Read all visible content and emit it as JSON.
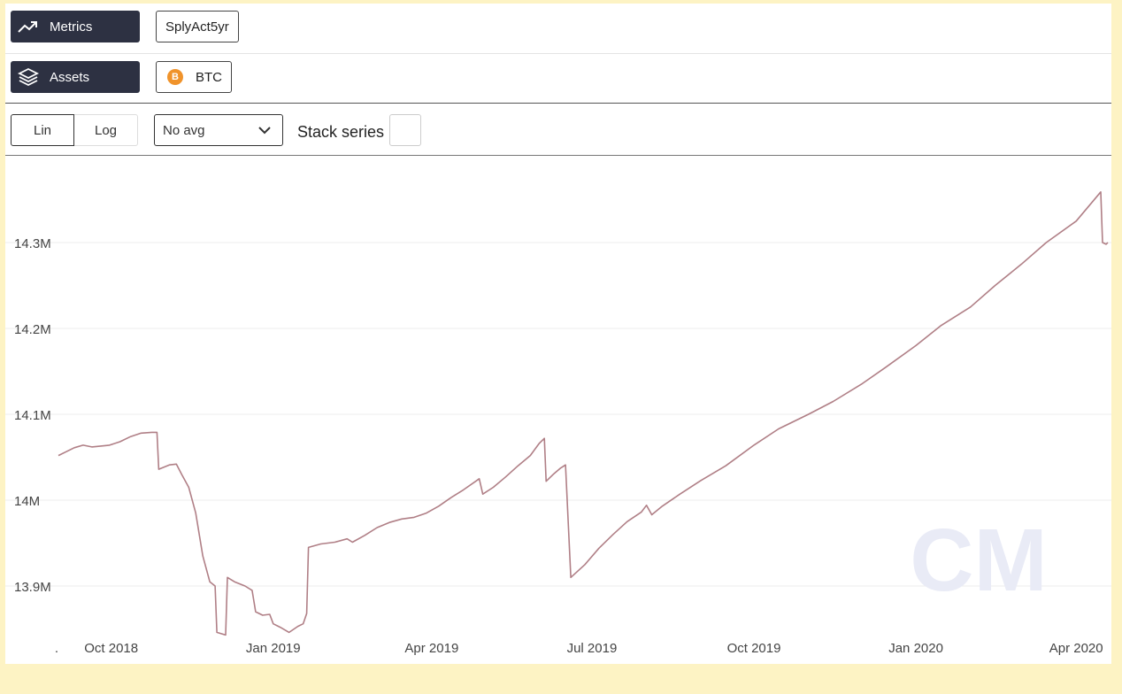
{
  "toolbar": {
    "metrics_label": "Metrics",
    "metric_value": "SplyAct5yr",
    "assets_label": "Assets",
    "asset_value": "BTC",
    "scale_lin": "Lin",
    "scale_log": "Log",
    "avg_select": "No avg",
    "stack_label": "Stack series"
  },
  "icons": [
    "trend-icon",
    "layers-icon",
    "bitcoin-icon",
    "chevron-down-icon"
  ],
  "colors": {
    "line": "#b07f86",
    "button_dark": "#2d3142",
    "bitcoin": "#f0932b"
  },
  "watermark": "CM",
  "chart_data": {
    "type": "line",
    "title": "",
    "xlabel": "",
    "ylabel": "",
    "ylim": [
      13.84,
      14.36
    ],
    "yticks": [
      {
        "value": 13.9,
        "label": "13.9M"
      },
      {
        "value": 14.0,
        "label": "14M"
      },
      {
        "value": 14.1,
        "label": "14.1M"
      },
      {
        "value": 14.2,
        "label": "14.2M"
      },
      {
        "value": 14.3,
        "label": "14.3M"
      }
    ],
    "xticks": [
      {
        "value": "2018-08-31",
        "label": "."
      },
      {
        "value": "2018-10-01",
        "label": "Oct 2018"
      },
      {
        "value": "2019-01-01",
        "label": "Jan 2019"
      },
      {
        "value": "2019-04-01",
        "label": "Apr 2019"
      },
      {
        "value": "2019-07-01",
        "label": "Jul 2019"
      },
      {
        "value": "2019-10-01",
        "label": "Oct 2019"
      },
      {
        "value": "2020-01-01",
        "label": "Jan 2020"
      },
      {
        "value": "2020-04-01",
        "label": "Apr 2020"
      }
    ],
    "xlim": [
      "2018-09-01",
      "2020-04-19"
    ],
    "grid": true,
    "series": [
      {
        "points": [
          [
            "2018-09-01",
            14.052
          ],
          [
            "2018-09-05",
            14.056
          ],
          [
            "2018-09-10",
            14.061
          ],
          [
            "2018-09-15",
            14.064
          ],
          [
            "2018-09-20",
            14.062
          ],
          [
            "2018-09-25",
            14.063
          ],
          [
            "2018-09-30",
            14.064
          ],
          [
            "2018-10-06",
            14.068
          ],
          [
            "2018-10-12",
            14.074
          ],
          [
            "2018-10-18",
            14.078
          ],
          [
            "2018-10-24",
            14.079
          ],
          [
            "2018-10-27",
            14.079
          ],
          [
            "2018-10-28",
            14.036
          ],
          [
            "2018-11-03",
            14.041
          ],
          [
            "2018-11-07",
            14.042
          ],
          [
            "2018-11-10",
            14.03
          ],
          [
            "2018-11-14",
            14.015
          ],
          [
            "2018-11-18",
            13.985
          ],
          [
            "2018-11-22",
            13.935
          ],
          [
            "2018-11-26",
            13.905
          ],
          [
            "2018-11-29",
            13.9
          ],
          [
            "2018-11-30",
            13.846
          ],
          [
            "2018-12-05",
            13.843
          ],
          [
            "2018-12-06",
            13.91
          ],
          [
            "2018-12-10",
            13.905
          ],
          [
            "2018-12-16",
            13.9
          ],
          [
            "2018-12-20",
            13.895
          ],
          [
            "2018-12-22",
            13.87
          ],
          [
            "2018-12-26",
            13.866
          ],
          [
            "2018-12-30",
            13.867
          ],
          [
            "2019-01-01",
            13.856
          ],
          [
            "2019-01-05",
            13.852
          ],
          [
            "2019-01-10",
            13.846
          ],
          [
            "2019-01-15",
            13.853
          ],
          [
            "2019-01-18",
            13.856
          ],
          [
            "2019-01-20",
            13.868
          ],
          [
            "2019-01-21",
            13.945
          ],
          [
            "2019-01-28",
            13.949
          ],
          [
            "2019-02-05",
            13.951
          ],
          [
            "2019-02-12",
            13.955
          ],
          [
            "2019-02-15",
            13.951
          ],
          [
            "2019-02-22",
            13.959
          ],
          [
            "2019-03-01",
            13.968
          ],
          [
            "2019-03-08",
            13.974
          ],
          [
            "2019-03-15",
            13.978
          ],
          [
            "2019-03-22",
            13.98
          ],
          [
            "2019-03-29",
            13.985
          ],
          [
            "2019-04-05",
            13.993
          ],
          [
            "2019-04-12",
            14.003
          ],
          [
            "2019-04-19",
            14.012
          ],
          [
            "2019-04-26",
            14.022
          ],
          [
            "2019-04-28",
            14.025
          ],
          [
            "2019-04-30",
            14.007
          ],
          [
            "2019-05-06",
            14.015
          ],
          [
            "2019-05-13",
            14.027
          ],
          [
            "2019-05-20",
            14.04
          ],
          [
            "2019-05-27",
            14.052
          ],
          [
            "2019-06-01",
            14.066
          ],
          [
            "2019-06-04",
            14.072
          ],
          [
            "2019-06-05",
            14.022
          ],
          [
            "2019-06-09",
            14.03
          ],
          [
            "2019-06-13",
            14.037
          ],
          [
            "2019-06-16",
            14.041
          ],
          [
            "2019-06-19",
            13.91
          ],
          [
            "2019-06-27",
            13.925
          ],
          [
            "2019-07-05",
            13.944
          ],
          [
            "2019-07-13",
            13.96
          ],
          [
            "2019-07-21",
            13.975
          ],
          [
            "2019-07-29",
            13.986
          ],
          [
            "2019-08-01",
            13.994
          ],
          [
            "2019-08-04",
            13.983
          ],
          [
            "2019-08-10",
            13.993
          ],
          [
            "2019-08-20",
            14.007
          ],
          [
            "2019-09-01",
            14.023
          ],
          [
            "2019-09-15",
            14.04
          ],
          [
            "2019-10-01",
            14.064
          ],
          [
            "2019-10-15",
            14.083
          ],
          [
            "2019-11-01",
            14.1
          ],
          [
            "2019-11-15",
            14.115
          ],
          [
            "2019-12-01",
            14.135
          ],
          [
            "2019-12-15",
            14.155
          ],
          [
            "2020-01-01",
            14.18
          ],
          [
            "2020-01-15",
            14.203
          ],
          [
            "2020-02-01",
            14.225
          ],
          [
            "2020-02-15",
            14.25
          ],
          [
            "2020-03-01",
            14.275
          ],
          [
            "2020-03-15",
            14.3
          ],
          [
            "2020-04-01",
            14.325
          ],
          [
            "2020-04-15",
            14.359
          ],
          [
            "2020-04-16",
            14.3
          ],
          [
            "2020-04-18",
            14.298
          ],
          [
            "2020-04-19",
            14.3
          ]
        ]
      }
    ]
  }
}
